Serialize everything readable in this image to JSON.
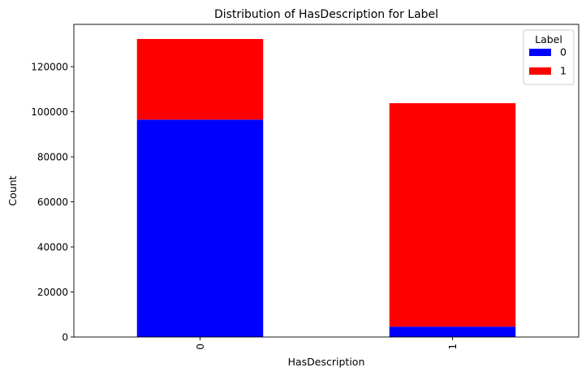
{
  "chart_data": {
    "type": "bar",
    "stacked": true,
    "title": "Distribution of HasDescription for Label",
    "xlabel": "HasDescription",
    "ylabel": "Count",
    "categories": [
      "0",
      "1"
    ],
    "series": [
      {
        "name": "0",
        "color": "#0000ff",
        "values": [
          96500,
          4600
        ]
      },
      {
        "name": "1",
        "color": "#ff0000",
        "values": [
          35800,
          99200
        ]
      }
    ],
    "ylim": [
      0,
      138800
    ],
    "yticks": [
      0,
      20000,
      40000,
      60000,
      80000,
      100000,
      120000
    ],
    "legend": {
      "title": "Label",
      "placement": "top-right"
    },
    "grid": false
  }
}
